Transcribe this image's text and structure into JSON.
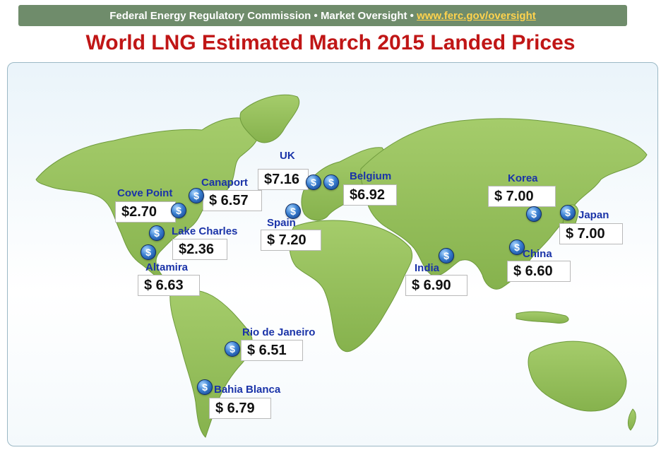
{
  "header": {
    "org": "Federal Energy Regulatory Commission",
    "separator": "•",
    "section": "Market Oversight",
    "link": "www.ferc.gov/oversight"
  },
  "title": "World LNG Estimated March 2015 Landed Prices",
  "colors": {
    "banner": "#6f8c6b",
    "link": "#ffd34d",
    "title": "#c01616",
    "label": "#1a33a8",
    "land": "#94bf5c"
  },
  "icon": {
    "name": "dollar-coin-icon",
    "glyph": "$"
  },
  "locations": [
    {
      "id": "cove-point",
      "name": "Cove Point",
      "price": "$2.70"
    },
    {
      "id": "canaport",
      "name": "Canaport",
      "price": "$  6.57"
    },
    {
      "id": "lake-charles",
      "name": "Lake Charles",
      "price": "$2.36"
    },
    {
      "id": "altamira",
      "name": "Altamira",
      "price": "$  6.63"
    },
    {
      "id": "uk",
      "name": "UK",
      "price": "$7.16"
    },
    {
      "id": "belgium",
      "name": "Belgium",
      "price": "$6.92"
    },
    {
      "id": "spain",
      "name": "Spain",
      "price": "$  7.20"
    },
    {
      "id": "india",
      "name": "India",
      "price": "$  6.90"
    },
    {
      "id": "korea",
      "name": "Korea",
      "price": "$  7.00"
    },
    {
      "id": "japan",
      "name": "Japan",
      "price": "$  7.00"
    },
    {
      "id": "china",
      "name": "China",
      "price": "$  6.60"
    },
    {
      "id": "rio-de-janeiro",
      "name": "Rio de Janeiro",
      "price": "$  6.51"
    },
    {
      "id": "bahia-blanca",
      "name": "Bahia Blanca",
      "price": "$  6.79"
    }
  ]
}
